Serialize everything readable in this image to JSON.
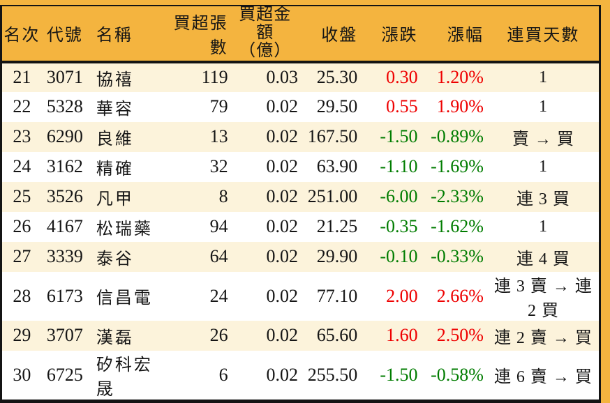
{
  "chart_data": {
    "type": "table",
    "description": "broker net-buy ranking table, ranks 21-30",
    "columns": [
      {
        "key": "rank",
        "label": "名次"
      },
      {
        "key": "code",
        "label": "代號"
      },
      {
        "key": "name",
        "label": "名稱"
      },
      {
        "key": "volume",
        "label": "買超張數"
      },
      {
        "key": "amount",
        "label": "買超金額",
        "label2": "（億）"
      },
      {
        "key": "close",
        "label": "收盤"
      },
      {
        "key": "change",
        "label": "漲跌"
      },
      {
        "key": "pct",
        "label": "漲幅"
      },
      {
        "key": "streak",
        "label": "連買天數"
      }
    ],
    "rows": [
      {
        "rank": "21",
        "code": "3071",
        "name": "協禧",
        "volume": "119",
        "amount": "0.03",
        "close": "25.30",
        "change": "0.30",
        "pct": "1.20%",
        "streak": "1",
        "trend": "up"
      },
      {
        "rank": "22",
        "code": "5328",
        "name": "華容",
        "volume": "79",
        "amount": "0.02",
        "close": "29.50",
        "change": "0.55",
        "pct": "1.90%",
        "streak": "1",
        "trend": "up"
      },
      {
        "rank": "23",
        "code": "6290",
        "name": "良維",
        "volume": "13",
        "amount": "0.02",
        "close": "167.50",
        "change": "-1.50",
        "pct": "-0.89%",
        "streak": "賣 → 買",
        "trend": "down"
      },
      {
        "rank": "24",
        "code": "3162",
        "name": "精確",
        "volume": "32",
        "amount": "0.02",
        "close": "63.90",
        "change": "-1.10",
        "pct": "-1.69%",
        "streak": "1",
        "trend": "down"
      },
      {
        "rank": "25",
        "code": "3526",
        "name": "凡甲",
        "volume": "8",
        "amount": "0.02",
        "close": "251.00",
        "change": "-6.00",
        "pct": "-2.33%",
        "streak": "連 3 買",
        "trend": "down"
      },
      {
        "rank": "26",
        "code": "4167",
        "name": "松瑞藥",
        "volume": "94",
        "amount": "0.02",
        "close": "21.25",
        "change": "-0.35",
        "pct": "-1.62%",
        "streak": "1",
        "trend": "down"
      },
      {
        "rank": "27",
        "code": "3339",
        "name": "泰谷",
        "volume": "64",
        "amount": "0.02",
        "close": "29.90",
        "change": "-0.10",
        "pct": "-0.33%",
        "streak": "連 4 買",
        "trend": "down"
      },
      {
        "rank": "28",
        "code": "6173",
        "name": "信昌電",
        "volume": "24",
        "amount": "0.02",
        "close": "77.10",
        "change": "2.00",
        "pct": "2.66%",
        "streak": "連 3 賣 → 連 2 買",
        "trend": "up"
      },
      {
        "rank": "29",
        "code": "3707",
        "name": "漢磊",
        "volume": "26",
        "amount": "0.02",
        "close": "65.60",
        "change": "1.60",
        "pct": "2.50%",
        "streak": "連 2 賣 → 買",
        "trend": "up"
      },
      {
        "rank": "30",
        "code": "6725",
        "name": "矽科宏晟",
        "volume": "6",
        "amount": "0.02",
        "close": "255.50",
        "change": "-1.50",
        "pct": "-0.58%",
        "streak": "連 6 賣 → 買",
        "trend": "down"
      }
    ]
  },
  "colors": {
    "header_bg": "#f4b43f",
    "row_alt_bg": "#fcf3db",
    "row_bg": "#ffffff",
    "up_red": "#ee0000",
    "down_green": "#007c00",
    "border_black": "#141414",
    "text": "#151515"
  }
}
